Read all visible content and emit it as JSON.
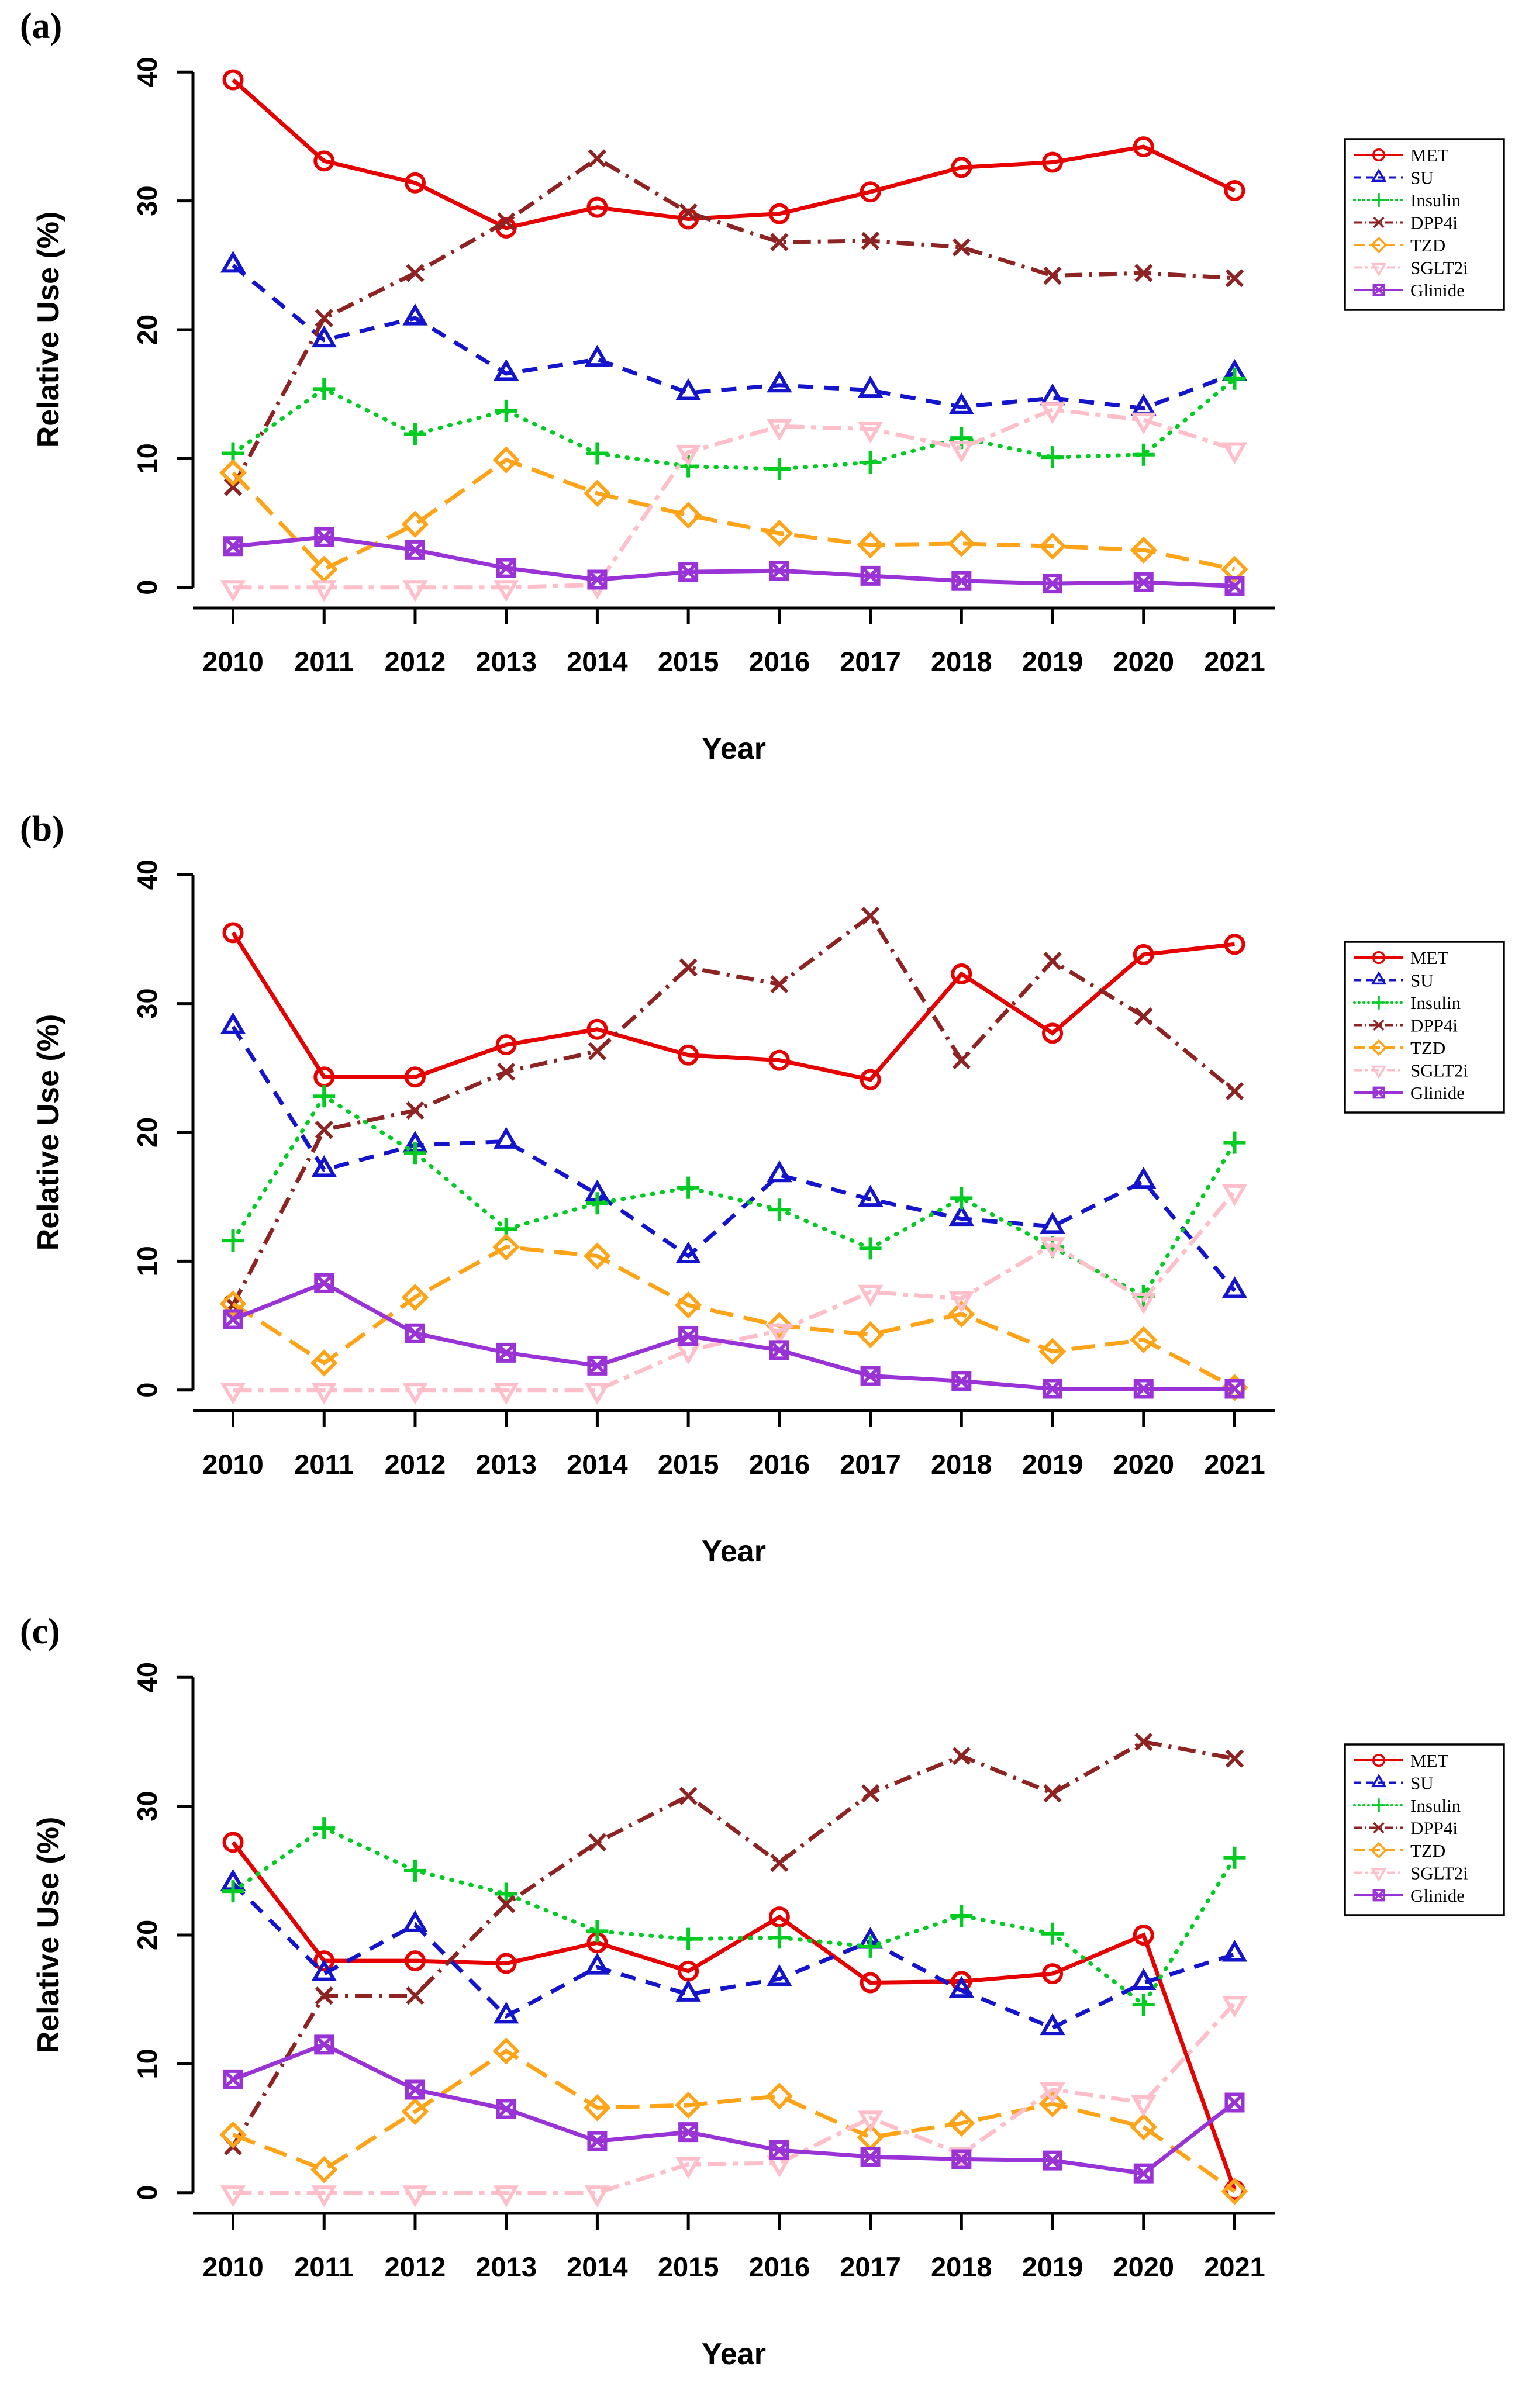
{
  "figure": {
    "background_color": "#ffffff",
    "text_color": "#000000",
    "axis_color": "#000000"
  },
  "chart_data": [
    {
      "type": "line",
      "panel_label": "(a)",
      "xlabel": "Year",
      "ylabel": "Relative Use (%)",
      "ylim": [
        0,
        40
      ],
      "y_ticks": [
        0,
        10,
        20,
        30,
        40
      ],
      "grid": false,
      "legend_position": "outside-top-right",
      "x": [
        2010,
        2011,
        2012,
        2013,
        2014,
        2015,
        2016,
        2017,
        2018,
        2019,
        2020,
        2021
      ],
      "series": [
        {
          "name": "MET",
          "color": "#e60000",
          "linestyle": "solid",
          "marker": "circle",
          "values": [
            39.4,
            33.1,
            31.4,
            27.9,
            29.5,
            28.6,
            29.0,
            30.7,
            32.6,
            33.0,
            34.2,
            30.8
          ]
        },
        {
          "name": "SU",
          "color": "#1414cc",
          "linestyle": "dashed",
          "marker": "triangle-up",
          "values": [
            25.0,
            19.2,
            20.9,
            16.6,
            17.7,
            15.1,
            15.7,
            15.3,
            14.0,
            14.7,
            13.9,
            16.6
          ]
        },
        {
          "name": "Insulin",
          "color": "#00cc22",
          "linestyle": "dotted",
          "marker": "plus",
          "values": [
            10.4,
            15.4,
            11.9,
            13.7,
            10.4,
            9.4,
            9.2,
            9.7,
            11.6,
            10.1,
            10.3,
            16.2
          ]
        },
        {
          "name": "DPP4i",
          "color": "#8e2323",
          "linestyle": "dashdot",
          "marker": "x-cross",
          "values": [
            7.8,
            20.9,
            24.4,
            28.4,
            33.3,
            29.1,
            26.8,
            26.9,
            26.4,
            24.2,
            24.4,
            24.0
          ]
        },
        {
          "name": "TZD",
          "color": "#ffa319",
          "linestyle": "longdash",
          "marker": "diamond",
          "values": [
            8.9,
            1.4,
            4.9,
            9.9,
            7.3,
            5.6,
            4.2,
            3.3,
            3.4,
            3.2,
            2.9,
            1.4
          ]
        },
        {
          "name": "SGLT2i",
          "color": "#ffbfca",
          "linestyle": "twodash",
          "marker": "triangle-down",
          "values": [
            0.0,
            0.0,
            0.0,
            0.0,
            0.2,
            10.5,
            12.5,
            12.3,
            10.8,
            13.8,
            13.0,
            10.7
          ]
        },
        {
          "name": "Glinide",
          "color": "#9933d6",
          "linestyle": "solid",
          "marker": "square-x",
          "values": [
            3.2,
            3.9,
            2.9,
            1.5,
            0.6,
            1.2,
            1.3,
            0.9,
            0.5,
            0.3,
            0.4,
            0.1
          ]
        }
      ]
    },
    {
      "type": "line",
      "panel_label": "(b)",
      "xlabel": "Year",
      "ylabel": "Relative Use (%)",
      "ylim": [
        0,
        40
      ],
      "y_ticks": [
        0,
        10,
        20,
        30,
        40
      ],
      "grid": false,
      "legend_position": "outside-top-right",
      "x": [
        2010,
        2011,
        2012,
        2013,
        2014,
        2015,
        2016,
        2017,
        2018,
        2019,
        2020,
        2021
      ],
      "series": [
        {
          "name": "MET",
          "color": "#e60000",
          "linestyle": "solid",
          "marker": "circle",
          "values": [
            35.5,
            24.3,
            24.3,
            26.8,
            28.0,
            26.0,
            25.6,
            24.1,
            32.3,
            27.7,
            33.8,
            34.6
          ]
        },
        {
          "name": "SU",
          "color": "#1414cc",
          "linestyle": "dashed",
          "marker": "triangle-up",
          "values": [
            28.2,
            17.1,
            19.0,
            19.3,
            15.2,
            10.4,
            16.7,
            14.8,
            13.3,
            12.7,
            16.2,
            7.7
          ]
        },
        {
          "name": "Insulin",
          "color": "#00cc22",
          "linestyle": "dotted",
          "marker": "plus",
          "values": [
            11.6,
            22.8,
            18.4,
            12.5,
            14.5,
            15.7,
            14.0,
            11.0,
            14.9,
            11.1,
            7.3,
            19.2
          ]
        },
        {
          "name": "DPP4i",
          "color": "#8e2323",
          "linestyle": "dashdot",
          "marker": "x-cross",
          "values": [
            6.6,
            20.2,
            21.7,
            24.7,
            26.3,
            32.8,
            31.5,
            36.8,
            25.6,
            33.3,
            29.0,
            23.2
          ]
        },
        {
          "name": "TZD",
          "color": "#ffa319",
          "linestyle": "longdash",
          "marker": "diamond",
          "values": [
            6.7,
            2.1,
            7.2,
            11.1,
            10.4,
            6.6,
            5.0,
            4.3,
            5.9,
            3.0,
            3.9,
            0.2
          ]
        },
        {
          "name": "SGLT2i",
          "color": "#ffbfca",
          "linestyle": "twodash",
          "marker": "triangle-down",
          "values": [
            0.0,
            0.0,
            0.0,
            0.0,
            0.0,
            3.1,
            4.6,
            7.6,
            7.1,
            11.3,
            7.0,
            15.4
          ]
        },
        {
          "name": "Glinide",
          "color": "#9933d6",
          "linestyle": "solid",
          "marker": "square-x",
          "values": [
            5.5,
            8.3,
            4.4,
            2.9,
            1.9,
            4.2,
            3.1,
            1.1,
            0.7,
            0.1,
            0.1,
            0.1
          ]
        }
      ]
    },
    {
      "type": "line",
      "panel_label": "(c)",
      "xlabel": "Year",
      "ylabel": "Relative Use (%)",
      "ylim": [
        0,
        40
      ],
      "y_ticks": [
        0,
        10,
        20,
        30,
        40
      ],
      "grid": false,
      "legend_position": "outside-top-right",
      "x": [
        2010,
        2011,
        2012,
        2013,
        2014,
        2015,
        2016,
        2017,
        2018,
        2019,
        2020,
        2021
      ],
      "series": [
        {
          "name": "MET",
          "color": "#e60000",
          "linestyle": "solid",
          "marker": "circle",
          "values": [
            27.2,
            18.0,
            18.0,
            17.8,
            19.4,
            17.2,
            21.4,
            16.3,
            16.4,
            17.0,
            20.0,
            0.2
          ]
        },
        {
          "name": "SU",
          "color": "#1414cc",
          "linestyle": "dashed",
          "marker": "triangle-up",
          "values": [
            24.0,
            17.0,
            20.8,
            13.7,
            17.5,
            15.4,
            16.6,
            19.5,
            15.7,
            12.8,
            16.3,
            18.5
          ]
        },
        {
          "name": "Insulin",
          "color": "#00cc22",
          "linestyle": "dotted",
          "marker": "plus",
          "values": [
            23.4,
            28.3,
            25.0,
            23.2,
            20.3,
            19.7,
            19.8,
            19.1,
            21.5,
            20.1,
            14.6,
            26.0
          ]
        },
        {
          "name": "DPP4i",
          "color": "#8e2323",
          "linestyle": "dashdot",
          "marker": "x-cross",
          "values": [
            3.6,
            15.3,
            15.3,
            22.4,
            27.2,
            30.8,
            25.6,
            31.0,
            33.9,
            31.0,
            35.0,
            33.7
          ]
        },
        {
          "name": "TZD",
          "color": "#ffa319",
          "linestyle": "longdash",
          "marker": "diamond",
          "values": [
            4.5,
            1.8,
            6.3,
            11.0,
            6.6,
            6.8,
            7.5,
            4.3,
            5.4,
            6.9,
            5.1,
            0.1
          ]
        },
        {
          "name": "SGLT2i",
          "color": "#ffbfca",
          "linestyle": "twodash",
          "marker": "triangle-down",
          "values": [
            0.0,
            0.0,
            0.0,
            0.0,
            0.0,
            2.2,
            2.3,
            5.8,
            3.0,
            8.0,
            7.0,
            14.7
          ]
        },
        {
          "name": "Glinide",
          "color": "#9933d6",
          "linestyle": "solid",
          "marker": "square-x",
          "values": [
            8.8,
            11.5,
            8.0,
            6.5,
            4.0,
            4.7,
            3.3,
            2.8,
            2.6,
            2.5,
            1.5,
            7.0
          ]
        }
      ]
    }
  ]
}
